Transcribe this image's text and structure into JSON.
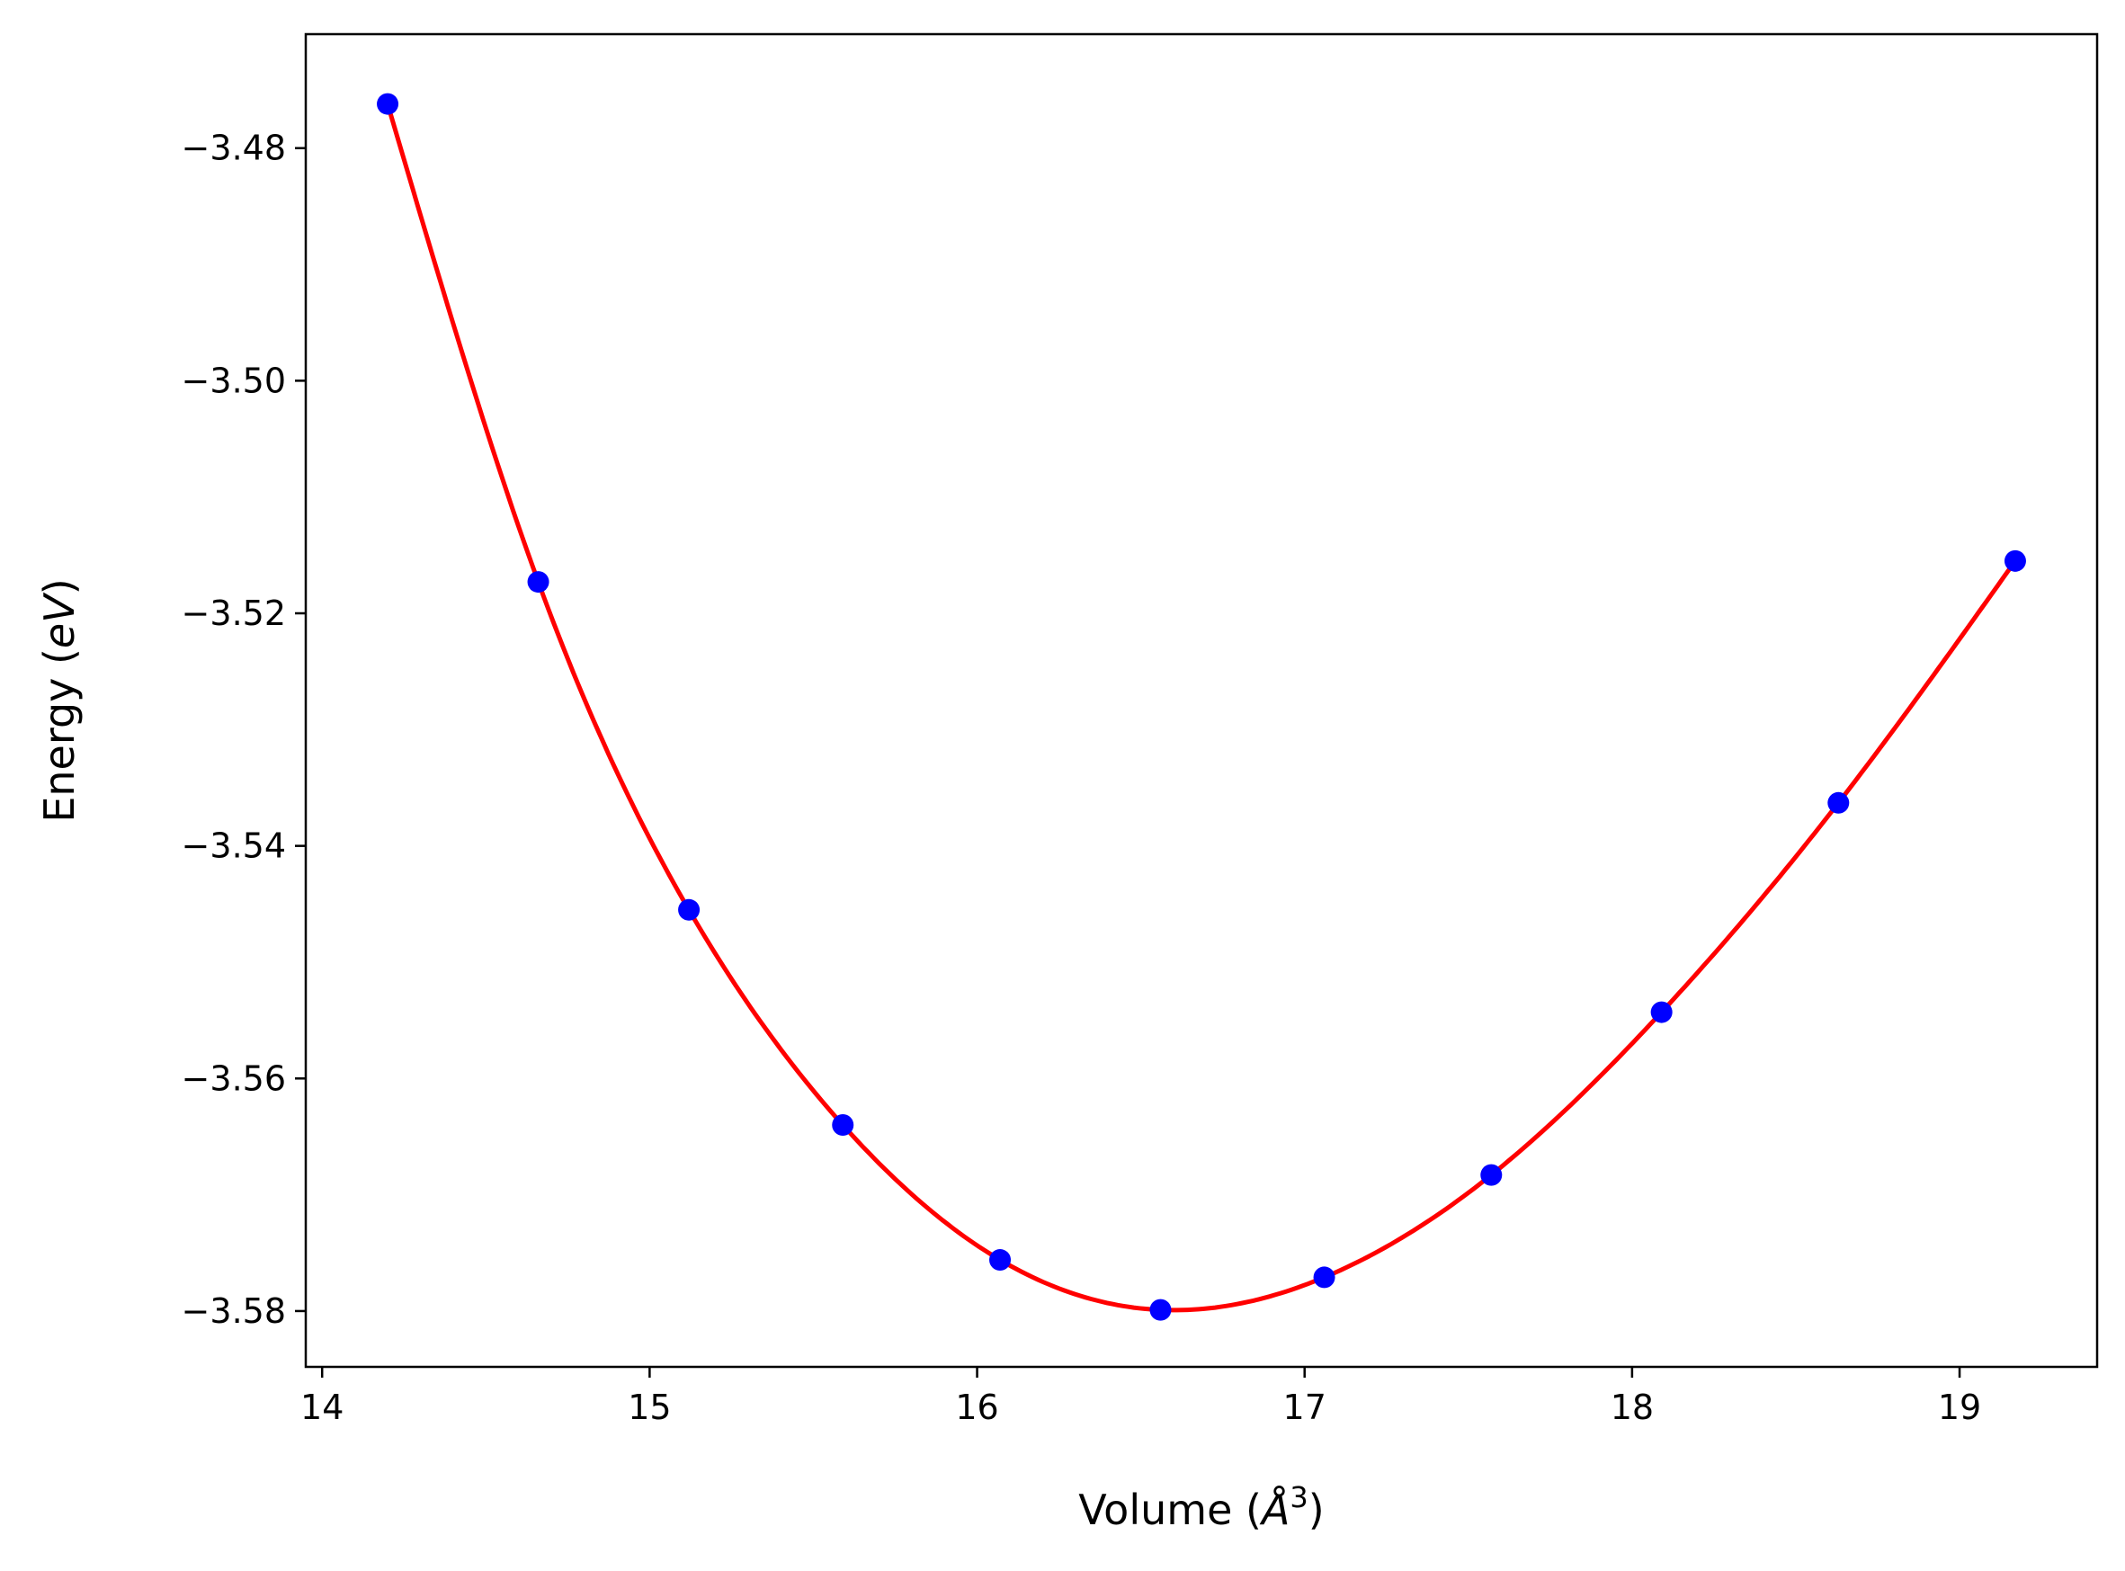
{
  "chart_data": {
    "type": "scatter",
    "title": "",
    "xlabel": {
      "prefix": "Volume (",
      "symbol": "Å",
      "superscript": "3",
      "suffix": ")"
    },
    "ylabel": {
      "prefix": "Energy (",
      "symbol": "eV",
      "suffix": ")"
    },
    "xlim": [
      13.95,
      19.42
    ],
    "ylim": [
      -3.5848,
      -3.4702
    ],
    "xticks": [
      14,
      15,
      16,
      17,
      18,
      19
    ],
    "xtick_labels": [
      "14",
      "15",
      "16",
      "17",
      "18",
      "19"
    ],
    "yticks": [
      -3.58,
      -3.56,
      -3.54,
      -3.52,
      -3.5,
      -3.48
    ],
    "ytick_labels": [
      "−3.58",
      "−3.56",
      "−3.54",
      "−3.52",
      "−3.50",
      "−3.48"
    ],
    "grid": false,
    "series": [
      {
        "kind": "points",
        "color": "#0000ff",
        "x": [
          14.2,
          14.66,
          15.12,
          15.59,
          16.07,
          16.56,
          17.06,
          17.57,
          18.09,
          18.63,
          19.17
        ],
        "y": [
          -3.4762,
          -3.5173,
          -3.5455,
          -3.564,
          -3.5756,
          -3.5799,
          -3.5771,
          -3.5683,
          -3.5543,
          -3.5363,
          -3.5155
        ]
      },
      {
        "kind": "fit-curve",
        "color": "#ff0000",
        "x": [
          14.2,
          14.66,
          15.12,
          15.59,
          16.07,
          16.56,
          17.06,
          17.57,
          18.09,
          18.63,
          19.17
        ],
        "y": [
          -3.4762,
          -3.5173,
          -3.5455,
          -3.564,
          -3.5756,
          -3.5799,
          -3.5771,
          -3.5683,
          -3.5543,
          -3.5363,
          -3.5155
        ]
      }
    ]
  }
}
